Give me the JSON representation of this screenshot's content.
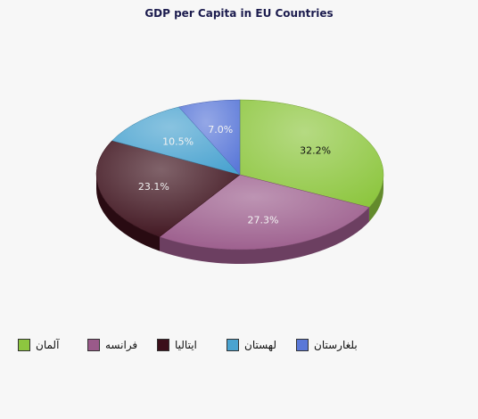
{
  "chart_data": {
    "type": "pie",
    "title": "GDP per Capita in EU Countries",
    "slices": [
      {
        "label": "آلمان",
        "value": 32.2,
        "display": "32.2%",
        "color": "#8dc63f"
      },
      {
        "label": "فرانسه",
        "value": 27.3,
        "display": "27.3%",
        "color": "#9a5a8a"
      },
      {
        "label": "ایتالیا",
        "value": 23.1,
        "display": "23.1%",
        "color": "#3b0f1a"
      },
      {
        "label": "لهستان",
        "value": 10.5,
        "display": "10.5%",
        "color": "#4aa3d0"
      },
      {
        "label": "بلغارستان",
        "value": 7.0,
        "display": "7.0%",
        "color": "#5a78d8"
      }
    ],
    "legend_position": "bottom",
    "three_d": true
  }
}
